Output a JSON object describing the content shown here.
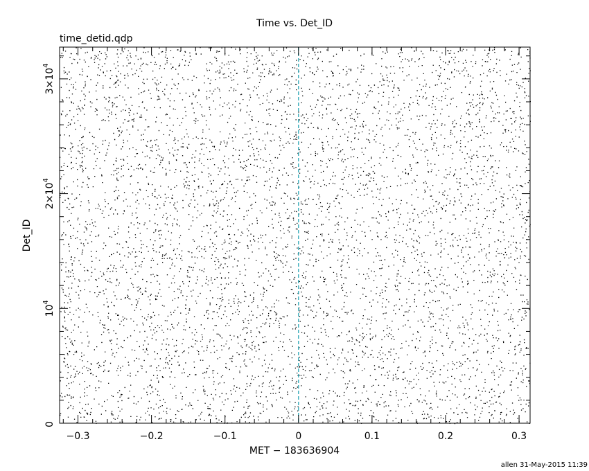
{
  "chart_data": {
    "type": "scatter",
    "title": "Time vs. Det_ID",
    "subtitle": "time_detid.qdp",
    "xlabel": "MET − 183636904",
    "ylabel": "Det_ID",
    "xlim": [
      -0.325,
      0.315
    ],
    "ylim": [
      0,
      32768
    ],
    "x_ticks": [
      {
        "value": -0.3,
        "label": "−0.3"
      },
      {
        "value": -0.2,
        "label": "−0.2"
      },
      {
        "value": -0.1,
        "label": "−0.1"
      },
      {
        "value": 0,
        "label": "0"
      },
      {
        "value": 0.1,
        "label": "0.1"
      },
      {
        "value": 0.2,
        "label": "0.2"
      },
      {
        "value": 0.3,
        "label": "0.3"
      }
    ],
    "y_ticks": [
      {
        "value": 0,
        "mantissa": "0",
        "exponent": ""
      },
      {
        "value": 10000,
        "mantissa": "10",
        "exponent": "4"
      },
      {
        "value": 20000,
        "mantissa": "2×10",
        "exponent": "4"
      },
      {
        "value": 30000,
        "mantissa": "3×10",
        "exponent": "4"
      }
    ],
    "x_minor_step": 0.02,
    "y_minor_step": 2000,
    "vline": {
      "x": 0,
      "color": "#2aa6b5",
      "style": "dashed"
    },
    "points_description": "dense uniform scatter of event times vs detector ID",
    "points_count_approx": 6000,
    "grid": false,
    "footer": "allen 31-May-2015 11:39"
  },
  "colors": {
    "points": "#000000",
    "axis": "#000000",
    "vline": "#2aa6b5"
  }
}
